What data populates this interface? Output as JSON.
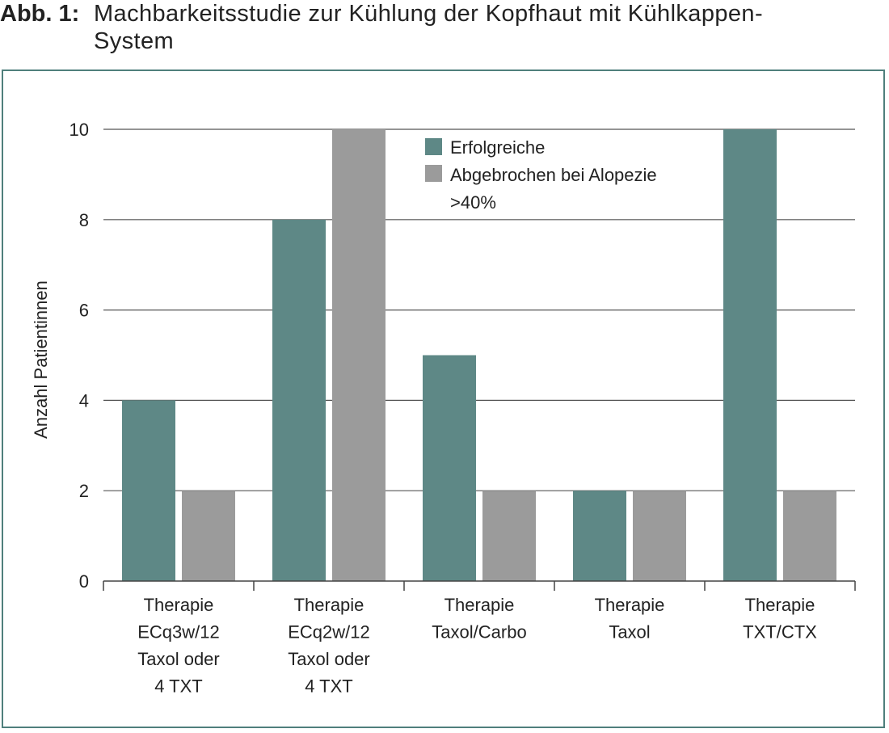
{
  "figure": {
    "label": "Abb. 1:",
    "title_line1": "Machbarkeitsstudie zur Kühlung der Kopfhaut mit Kühlkappen-",
    "title_line2": "System"
  },
  "chart_data": {
    "type": "bar",
    "title": "Machbarkeitsstudie zur Kühlung der Kopfhaut mit Kühlkappen-System",
    "ylabel": "Anzahl Patientinnen",
    "xlabel": "",
    "ylim": [
      0,
      10
    ],
    "yticks": [
      0,
      2,
      4,
      6,
      8,
      10
    ],
    "grid": true,
    "legend_position": "top-center",
    "categories": [
      [
        "Therapie",
        "ECq3w/12",
        "Taxol oder",
        "4 TXT"
      ],
      [
        "Therapie",
        "ECq2w/12",
        "Taxol oder",
        "4 TXT"
      ],
      [
        "Therapie",
        "Taxol/Carbo"
      ],
      [
        "Therapie",
        "Taxol"
      ],
      [
        "Therapie",
        "TXT/CTX"
      ]
    ],
    "series": [
      {
        "name": "Erfolgreiche",
        "color": "#5e8886",
        "values": [
          4,
          8,
          5,
          2,
          10
        ]
      },
      {
        "name_lines": [
          "Abgebrochen bei Alopezie",
          ">40%"
        ],
        "name": "Abgebrochen bei Alopezie >40%",
        "color": "#9b9b9b",
        "values": [
          2,
          10,
          2,
          2,
          2
        ]
      }
    ]
  },
  "colors": {
    "frame": "#4f7f7c",
    "grid": "#555555",
    "axis": "#444444"
  }
}
